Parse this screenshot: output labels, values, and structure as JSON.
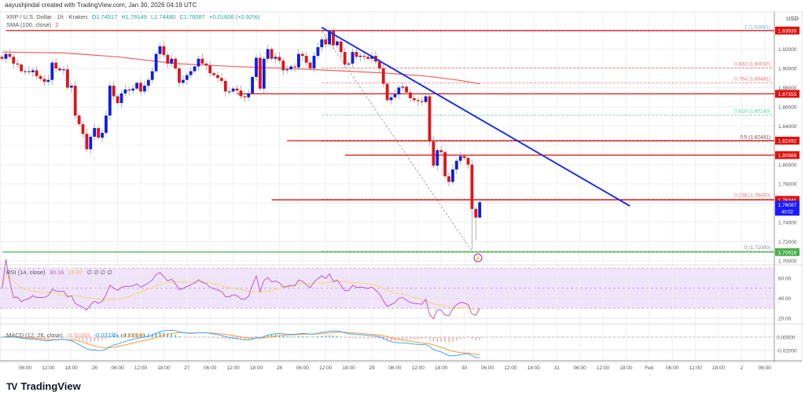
{
  "header": {
    "credit": "aayushjindal created with TradingView.com, Jan 30, 2026 04:19 UTC"
  },
  "legend": {
    "symbol": "XRP / U.S. Dollar · 1h · Kraken",
    "open": "O1.74517",
    "high": "H1.76149",
    "low": "L1.74480",
    "close": "C1.76087",
    "change": "+0.01606 (+0.92%)",
    "sma_label": "SMA (100, close)",
    "sma_value": "2",
    "rsi_label": "RSI (14, close)",
    "rsi_value": "30.16",
    "rsi_ma_value": "26.87",
    "rsi_extra": "∅ ∅ ∅ ∅",
    "macd_label": "MACD (12, 26, close)",
    "macd_hist": "-0.00389",
    "macd_value": "-0.03235",
    "macd_signal": "-0.02846"
  },
  "axis": {
    "currency": "USD"
  },
  "branding": {
    "logo_text": "TradingView",
    "logo_mark": "TV"
  },
  "colors": {
    "up": "#0a1fe0",
    "down": "#e0141a",
    "sma": "#f06060",
    "trend": "#1a2fe6",
    "support": "#e01010",
    "green": "#4caf50",
    "rsi": "#b85ccc",
    "rsi_ma": "#f2d96b",
    "macd": "#42a5f5",
    "signal": "#ff9a3c"
  },
  "chart_data": {
    "type": "candlestick",
    "title": "XRP / U.S. Dollar · 1h · Kraken",
    "ylabel": "USD",
    "ylim": [
      1.695,
      1.955
    ],
    "x_unit": "hours since Jan 25 00:00",
    "first_open": 1.912,
    "closes": [
      1.91,
      1.915,
      1.912,
      1.905,
      1.904,
      1.897,
      1.897,
      1.896,
      1.898,
      1.892,
      1.889,
      1.886,
      1.888,
      1.906,
      1.9,
      1.898,
      1.899,
      1.88,
      1.882,
      1.851,
      1.842,
      1.832,
      1.816,
      1.829,
      1.838,
      1.828,
      1.833,
      1.851,
      1.882,
      1.871,
      1.864,
      1.874,
      1.878,
      1.877,
      1.879,
      1.885,
      1.876,
      1.882,
      1.888,
      1.897,
      1.915,
      1.923,
      1.914,
      1.905,
      1.91,
      1.9,
      1.885,
      1.888,
      1.893,
      1.897,
      1.902,
      1.91,
      1.905,
      1.903,
      1.895,
      1.893,
      1.89,
      1.887,
      1.876,
      1.876,
      1.879,
      1.877,
      1.871,
      1.87,
      1.874,
      1.891,
      1.911,
      1.879,
      1.91,
      1.92,
      1.91,
      1.912,
      1.908,
      1.898,
      1.899,
      1.902,
      1.901,
      1.915,
      1.913,
      1.906,
      1.9,
      1.913,
      1.922,
      1.93,
      1.925,
      1.939,
      1.924,
      1.928,
      1.917,
      1.904,
      1.905,
      1.917,
      1.912,
      1.913,
      1.912,
      1.91,
      1.913,
      1.907,
      1.9,
      1.884,
      1.867,
      1.87,
      1.873,
      1.88,
      1.881,
      1.875,
      1.869,
      1.867,
      1.866,
      1.865,
      1.871,
      1.824,
      1.799,
      1.815,
      1.813,
      1.788,
      1.782,
      1.795,
      1.804,
      1.809,
      1.807,
      1.8,
      1.754,
      1.745,
      1.761
    ],
    "low_overrides": [
      [
        122,
        1.712
      ],
      [
        123,
        1.722
      ],
      [
        124,
        1.7448
      ]
    ],
    "sma100": [
      [
        0,
        1.917
      ],
      [
        16,
        1.916
      ],
      [
        30,
        1.912
      ],
      [
        45,
        1.905
      ],
      [
        60,
        1.902
      ],
      [
        80,
        1.899
      ],
      [
        100,
        1.895
      ],
      [
        110,
        1.892
      ],
      [
        118,
        1.888
      ],
      [
        124,
        1.884
      ]
    ],
    "trendline": [
      [
        83,
        1.9425
      ],
      [
        163,
        1.757
      ]
    ],
    "horizontal_levels": [
      {
        "price": 1.9393,
        "label": "1.93930",
        "from_hour": 1,
        "color": "#e01010"
      },
      {
        "price": 1.87355,
        "label": "1.87355",
        "from_hour": 61,
        "color": "#e01010"
      },
      {
        "price": 1.82492,
        "label": "1.82492",
        "from_hour": 74,
        "color": "#e01010"
      },
      {
        "price": 1.80989,
        "label": "1.80989",
        "from_hour": 89,
        "color": "#e01010"
      },
      {
        "price": 1.76341,
        "label": "1.76341",
        "from_hour": 70,
        "color": "#e01010"
      },
      {
        "price": 1.70918,
        "label": "1.70918",
        "from_hour": 0,
        "color": "#4caf50"
      }
    ],
    "fib_levels": [
      {
        "ratio": "1",
        "price": 1.93881,
        "label": "1 (1.93881)",
        "color": "#64b5f6"
      },
      {
        "ratio": "0.832",
        "price": 1.90037,
        "label": "0.832 (1.90037)",
        "color": "#e57373"
      },
      {
        "ratio": "0.764",
        "price": 1.88481,
        "label": "0.764 (1.88481)",
        "color": "#e57373"
      },
      {
        "ratio": "0.618",
        "price": 1.8514,
        "label": "0.618 (1.85140)",
        "color": "#4dd0a0"
      },
      {
        "ratio": "0.5",
        "price": 1.82441,
        "label": "0.5 (1.82441)",
        "color": "#7b3b3b"
      },
      {
        "ratio": "0.236",
        "price": 1.764,
        "label": "0.236 (1.76400)",
        "color": "#e57373"
      },
      {
        "ratio": "0",
        "price": 1.71,
        "label": "0 (1.71000)",
        "color": "#888888"
      }
    ],
    "fib_from_hour": 83,
    "current_price": {
      "label": "1.76087",
      "countdown": "40:02",
      "price": 1.76087
    },
    "price_ticks": [
      "1.92000",
      "1.90000",
      "1.88000",
      "1.86000",
      "1.84000",
      "1.80000",
      "1.78000",
      "1.74000",
      "1.72000",
      "1.70000"
    ],
    "rsi_ticks": [
      "60.00",
      "40.00",
      "20.00"
    ],
    "macd_ticks": [
      "0.00000",
      "-0.02000"
    ],
    "time_ticks": [
      [
        6,
        "06:00"
      ],
      [
        12,
        "12:00"
      ],
      [
        18,
        "18:00"
      ],
      [
        24,
        "26"
      ],
      [
        30,
        "06:00"
      ],
      [
        36,
        "12:00"
      ],
      [
        42,
        "18:00"
      ],
      [
        48,
        "27"
      ],
      [
        54,
        "06:00"
      ],
      [
        60,
        "12:00"
      ],
      [
        66,
        "18:00"
      ],
      [
        72,
        "28"
      ],
      [
        78,
        "06:00"
      ],
      [
        84,
        "12:00"
      ],
      [
        90,
        "18:00"
      ],
      [
        96,
        "29"
      ],
      [
        102,
        "06:00"
      ],
      [
        108,
        "12:00"
      ],
      [
        114,
        "18:00"
      ],
      [
        120,
        "30"
      ],
      [
        126,
        "06:00"
      ],
      [
        132,
        "12:00"
      ],
      [
        138,
        "18:00"
      ],
      [
        144,
        "31"
      ],
      [
        150,
        "06:00"
      ],
      [
        156,
        "12:00"
      ],
      [
        162,
        "18:00"
      ],
      [
        168,
        "Feb"
      ],
      [
        174,
        "06:00"
      ],
      [
        180,
        "12:00"
      ],
      [
        186,
        "18:00"
      ],
      [
        192,
        "2"
      ],
      [
        198,
        "06:00"
      ]
    ]
  }
}
